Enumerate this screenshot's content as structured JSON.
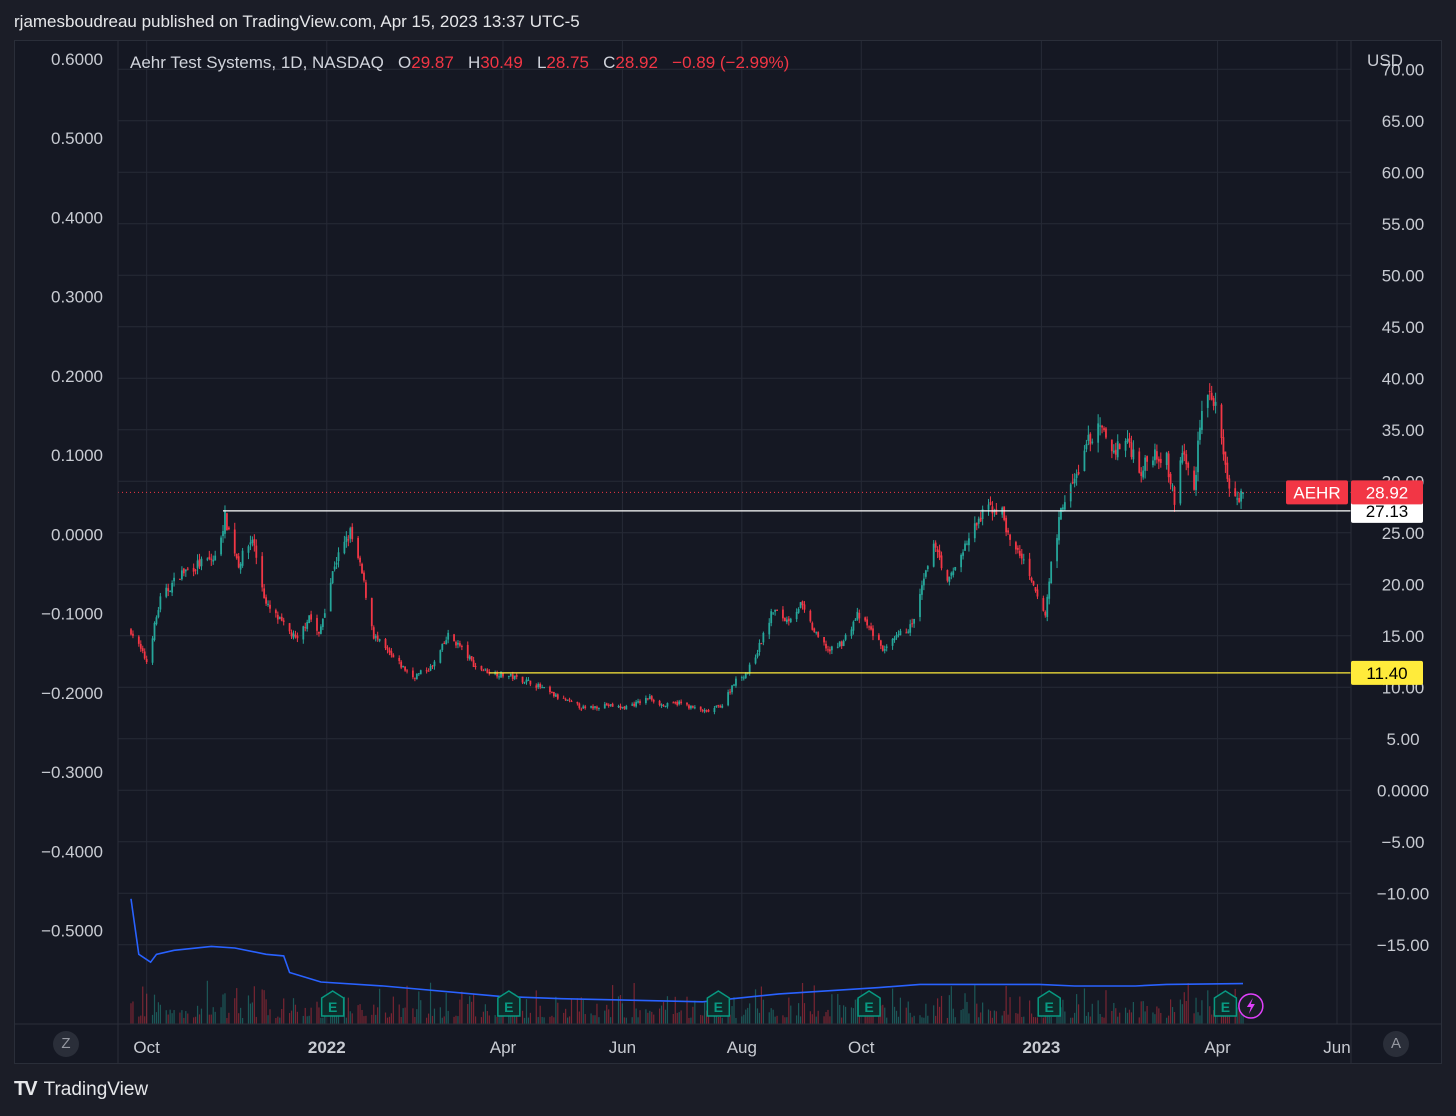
{
  "caption": "rjamesboudreau published on TradingView.com, Apr 15, 2023 13:37 UTC-5",
  "legend": {
    "symbol": "Aehr Test Systems, 1D, NASDAQ",
    "o_label": "O",
    "o_value": "29.87",
    "h_label": "H",
    "h_value": "30.49",
    "l_label": "L",
    "l_value": "28.75",
    "c_label": "C",
    "c_value": "28.92",
    "change": "−0.89 (−2.99%)"
  },
  "buttons": {
    "left": "Z",
    "right": "A"
  },
  "brand": {
    "logo": "TV",
    "name": "TradingView"
  },
  "colors": {
    "up": "#26a69a",
    "down": "#f23645",
    "indicator": "#2962ff",
    "earnings": "#089981",
    "yellow": "#ffeb3b",
    "bg": "#151823"
  },
  "chart_data": {
    "type": "candlestick",
    "symbol": "AEHR",
    "currency_label": "USD",
    "right_axis": {
      "range": [
        -19,
        71
      ],
      "ticks": [
        "70.00",
        "65.00",
        "60.00",
        "55.00",
        "50.00",
        "45.00",
        "40.00",
        "35.00",
        "30.00",
        "25.00",
        "20.00",
        "15.00",
        "10.00",
        "5.00",
        "0.0000",
        "−5.00",
        "−10.00",
        "−15.00"
      ]
    },
    "left_axis": {
      "range": [
        -0.57,
        0.6
      ],
      "ticks": [
        "0.6000",
        "0.5000",
        "0.4000",
        "0.3000",
        "0.2000",
        "0.1000",
        "0.0000",
        "−0.1000",
        "−0.2000",
        "−0.3000",
        "−0.4000",
        "−0.5000"
      ]
    },
    "time_axis": [
      {
        "label": "Oct",
        "date": "2021-10-01",
        "bold": false
      },
      {
        "label": "2022",
        "date": "2022-01-01",
        "bold": true
      },
      {
        "label": "Apr",
        "date": "2022-04-01",
        "bold": false
      },
      {
        "label": "Jun",
        "date": "2022-06-01",
        "bold": false
      },
      {
        "label": "Aug",
        "date": "2022-08-01",
        "bold": false
      },
      {
        "label": "Oct",
        "date": "2022-10-01",
        "bold": false
      },
      {
        "label": "2023",
        "date": "2023-01-01",
        "bold": true
      },
      {
        "label": "Apr",
        "date": "2023-04-01",
        "bold": false
      },
      {
        "label": "Jun",
        "date": "2023-06-01",
        "bold": false
      }
    ],
    "price_path": [
      [
        "2021-09-23",
        15.5
      ],
      [
        "2021-10-01",
        12.5
      ],
      [
        "2021-10-08",
        18.5
      ],
      [
        "2021-10-18",
        21
      ],
      [
        "2021-10-28",
        22
      ],
      [
        "2021-11-05",
        22.5
      ],
      [
        "2021-11-10",
        26.5
      ],
      [
        "2021-11-17",
        22
      ],
      [
        "2021-11-24",
        24.5
      ],
      [
        "2021-12-01",
        18
      ],
      [
        "2021-12-10",
        16
      ],
      [
        "2021-12-17",
        14.5
      ],
      [
        "2021-12-23",
        17
      ],
      [
        "2021-12-28",
        15
      ],
      [
        "2022-01-05",
        22
      ],
      [
        "2022-01-13",
        25
      ],
      [
        "2022-01-19",
        21
      ],
      [
        "2022-01-25",
        15
      ],
      [
        "2022-02-03",
        13
      ],
      [
        "2022-02-14",
        11
      ],
      [
        "2022-02-24",
        12
      ],
      [
        "2022-03-04",
        15
      ],
      [
        "2022-03-10",
        14
      ],
      [
        "2022-03-18",
        12
      ],
      [
        "2022-03-25",
        11.5
      ],
      [
        "2022-04-06",
        11
      ],
      [
        "2022-04-15",
        10.5
      ],
      [
        "2022-04-22",
        9.8
      ],
      [
        "2022-04-29",
        9
      ],
      [
        "2022-05-06",
        8.5
      ],
      [
        "2022-05-13",
        7.9
      ],
      [
        "2022-05-23",
        8.3
      ],
      [
        "2022-06-01",
        8
      ],
      [
        "2022-06-09",
        8.5
      ],
      [
        "2022-06-15",
        9
      ],
      [
        "2022-06-22",
        8.2
      ],
      [
        "2022-06-30",
        8.5
      ],
      [
        "2022-07-07",
        8
      ],
      [
        "2022-07-14",
        7.6
      ],
      [
        "2022-07-22",
        8.3
      ],
      [
        "2022-07-28",
        10.5
      ],
      [
        "2022-08-04",
        11.5
      ],
      [
        "2022-08-10",
        14
      ],
      [
        "2022-08-17",
        17.5
      ],
      [
        "2022-08-24",
        16.5
      ],
      [
        "2022-08-31",
        18
      ],
      [
        "2022-09-08",
        15
      ],
      [
        "2022-09-15",
        13.5
      ],
      [
        "2022-09-22",
        14.5
      ],
      [
        "2022-09-29",
        17
      ],
      [
        "2022-10-06",
        15.5
      ],
      [
        "2022-10-13",
        13.5
      ],
      [
        "2022-10-20",
        15
      ],
      [
        "2022-10-27",
        16
      ],
      [
        "2022-11-03",
        21
      ],
      [
        "2022-11-08",
        24
      ],
      [
        "2022-11-14",
        20
      ],
      [
        "2022-11-21",
        23
      ],
      [
        "2022-11-28",
        25.5
      ],
      [
        "2022-12-05",
        27.5
      ],
      [
        "2022-12-12",
        27
      ],
      [
        "2022-12-16",
        24
      ],
      [
        "2022-12-21",
        23
      ],
      [
        "2022-12-27",
        20
      ],
      [
        "2023-01-03",
        17
      ],
      [
        "2023-01-06",
        22
      ],
      [
        "2023-01-12",
        28
      ],
      [
        "2023-01-18",
        30
      ],
      [
        "2023-01-25",
        34
      ],
      [
        "2023-01-31",
        35
      ],
      [
        "2023-02-07",
        33
      ],
      [
        "2023-02-14",
        34
      ],
      [
        "2023-02-21",
        31
      ],
      [
        "2023-02-28",
        33
      ],
      [
        "2023-03-06",
        32
      ],
      [
        "2023-03-10",
        28
      ],
      [
        "2023-03-14",
        33
      ],
      [
        "2023-03-20",
        29
      ],
      [
        "2023-03-23",
        36
      ],
      [
        "2023-03-27",
        39
      ],
      [
        "2023-03-31",
        37
      ],
      [
        "2023-04-05",
        31
      ],
      [
        "2023-04-10",
        28
      ],
      [
        "2023-04-14",
        28.92
      ]
    ],
    "levels": [
      {
        "label": "27.13",
        "value": 27.13,
        "color": "#ffffff",
        "from": "2021-11-09"
      },
      {
        "label": "11.40",
        "value": 11.4,
        "color": "#ffeb3b",
        "from": "2022-03-25"
      }
    ],
    "last_price": {
      "symbol": "AEHR",
      "label": "28.92",
      "value": 28.92,
      "color": "#f23645"
    },
    "earnings_dates": [
      "2022-01-04",
      "2022-04-04",
      "2022-07-20",
      "2022-10-05",
      "2023-01-05",
      "2023-04-05"
    ],
    "indicator_path": [
      [
        "2021-09-23",
        -0.46
      ],
      [
        "2021-09-27",
        -0.53
      ],
      [
        "2021-10-03",
        -0.54
      ],
      [
        "2021-10-06",
        -0.53
      ],
      [
        "2021-10-15",
        -0.525
      ],
      [
        "2021-11-03",
        -0.52
      ],
      [
        "2021-11-15",
        -0.522
      ],
      [
        "2021-12-01",
        -0.53
      ],
      [
        "2021-12-10",
        -0.532
      ],
      [
        "2021-12-13",
        -0.553
      ],
      [
        "2021-12-29",
        -0.565
      ],
      [
        "2022-01-30",
        -0.57
      ],
      [
        "2022-03-30",
        -0.583
      ],
      [
        "2022-05-01",
        -0.586
      ],
      [
        "2022-07-12",
        -0.59
      ],
      [
        "2022-08-20",
        -0.58
      ],
      [
        "2022-10-10",
        -0.572
      ],
      [
        "2022-10-31",
        -0.568
      ],
      [
        "2022-12-31",
        -0.568
      ],
      [
        "2023-01-18",
        -0.57
      ],
      [
        "2023-02-18",
        -0.57
      ],
      [
        "2023-03-06",
        -0.568
      ],
      [
        "2023-04-14",
        -0.567
      ]
    ]
  }
}
